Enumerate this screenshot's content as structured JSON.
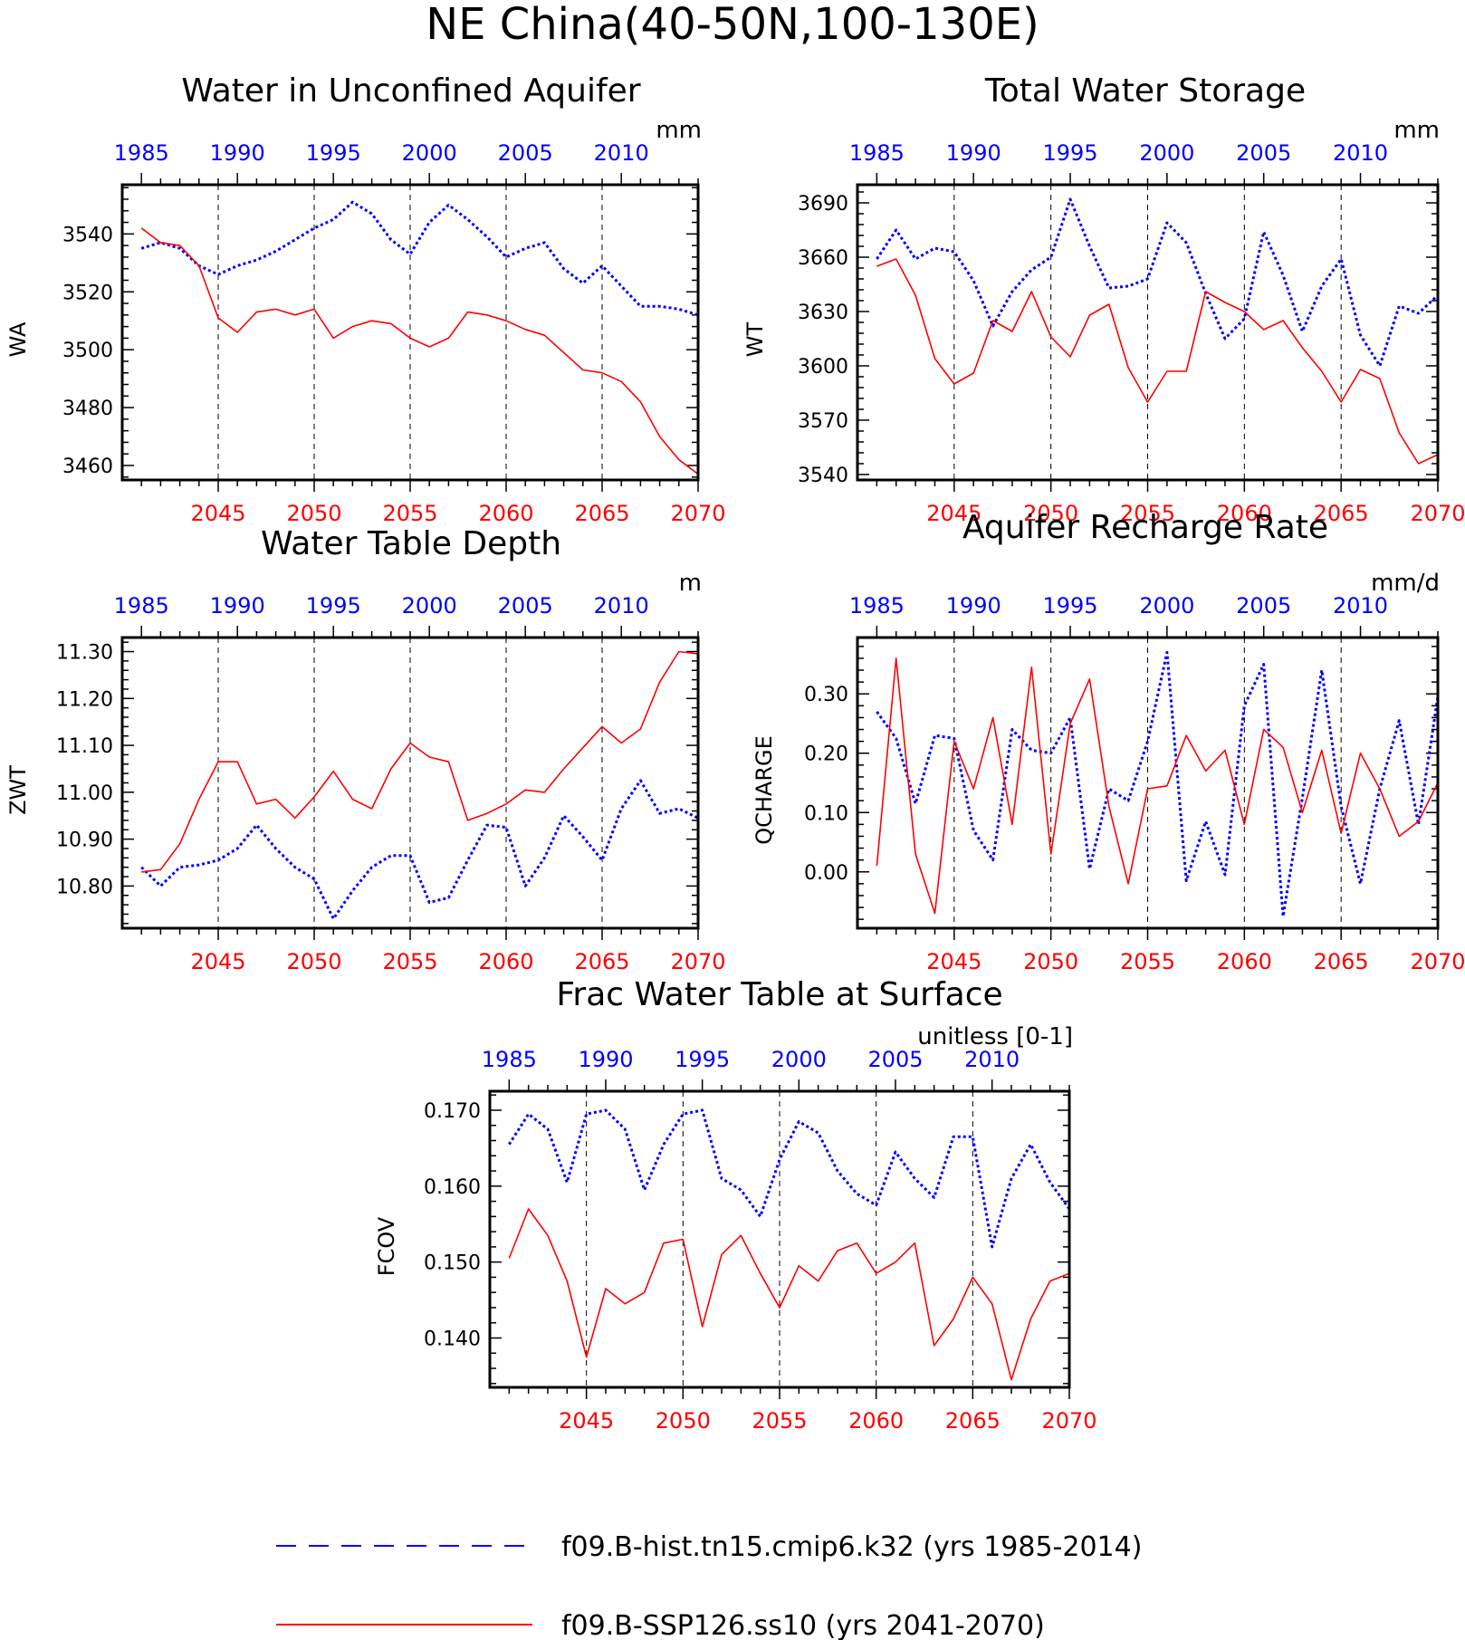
{
  "figure_title": "NE China(40-50N,100-130E)",
  "colors": {
    "hist": "#0000ff",
    "ssp": "#ff0000",
    "axis": "#000000",
    "grid": "#000000"
  },
  "legend": [
    {
      "label": "f09.B-hist.tn15.cmip6.k32 (yrs 1985-2014)",
      "color": "#0000ff",
      "style": "dashed"
    },
    {
      "label": "f09.B-SSP126.ss10 (yrs 2041-2070)",
      "color": "#ff0000",
      "style": "solid"
    }
  ],
  "chart_data": [
    {
      "type": "line",
      "title": "Water in Unconfined Aquifer",
      "ylabel": "WA",
      "units": "mm",
      "ylim": [
        3455,
        3557
      ],
      "yticks": [
        3460,
        3480,
        3500,
        3520,
        3540
      ],
      "ytick_labels": [
        "3460",
        "3480",
        "3500",
        "3520",
        "3540"
      ],
      "top_xticks": [
        1985,
        1990,
        1995,
        2000,
        2005,
        2010
      ],
      "bottom_xticks": [
        2045,
        2050,
        2055,
        2060,
        2065,
        2070
      ],
      "x_hist": [
        1985,
        1986,
        1987,
        1988,
        1989,
        1990,
        1991,
        1992,
        1993,
        1994,
        1995,
        1996,
        1997,
        1998,
        1999,
        2000,
        2001,
        2002,
        2003,
        2004,
        2005,
        2006,
        2007,
        2008,
        2009,
        2010,
        2011,
        2012,
        2013,
        2014
      ],
      "x_ssp": [
        2041,
        2042,
        2043,
        2044,
        2045,
        2046,
        2047,
        2048,
        2049,
        2050,
        2051,
        2052,
        2053,
        2054,
        2055,
        2056,
        2057,
        2058,
        2059,
        2060,
        2061,
        2062,
        2063,
        2064,
        2065,
        2066,
        2067,
        2068,
        2069,
        2070
      ],
      "series": [
        {
          "name": "f09.B-hist.tn15.cmip6.k32 (yrs 1985-2014)",
          "axis": "top",
          "values": [
            3535,
            3537,
            3535,
            3529,
            3526,
            3529,
            3531,
            3534,
            3538,
            3542,
            3545,
            3551,
            3547,
            3538,
            3533,
            3544,
            3550,
            3545,
            3539,
            3532,
            3535,
            3537,
            3528,
            3523,
            3529,
            3522,
            3515,
            3515,
            3514,
            3512
          ]
        },
        {
          "name": "f09.B-SSP126.ss10 (yrs 2041-2070)",
          "axis": "bottom",
          "values": [
            3542,
            3537,
            3536,
            3529,
            3511,
            3506,
            3513,
            3514,
            3512,
            3514,
            3504,
            3508,
            3510,
            3509,
            3504,
            3501,
            3504,
            3513,
            3512,
            3510,
            3507,
            3505,
            3499,
            3493,
            3492,
            3489,
            3482,
            3470,
            3462,
            3457
          ]
        }
      ]
    },
    {
      "type": "line",
      "title": "Total Water Storage",
      "ylabel": "WT",
      "units": "mm",
      "ylim": [
        3537,
        3700
      ],
      "yticks": [
        3540,
        3570,
        3600,
        3630,
        3660,
        3690
      ],
      "ytick_labels": [
        "3540",
        "3570",
        "3600",
        "3630",
        "3660",
        "3690"
      ],
      "top_xticks": [
        1985,
        1990,
        1995,
        2000,
        2005,
        2010
      ],
      "bottom_xticks": [
        2045,
        2050,
        2055,
        2060,
        2065,
        2070
      ],
      "x_hist": [
        1985,
        1986,
        1987,
        1988,
        1989,
        1990,
        1991,
        1992,
        1993,
        1994,
        1995,
        1996,
        1997,
        1998,
        1999,
        2000,
        2001,
        2002,
        2003,
        2004,
        2005,
        2006,
        2007,
        2008,
        2009,
        2010,
        2011,
        2012,
        2013,
        2014
      ],
      "x_ssp": [
        2041,
        2042,
        2043,
        2044,
        2045,
        2046,
        2047,
        2048,
        2049,
        2050,
        2051,
        2052,
        2053,
        2054,
        2055,
        2056,
        2057,
        2058,
        2059,
        2060,
        2061,
        2062,
        2063,
        2064,
        2065,
        2066,
        2067,
        2068,
        2069,
        2070
      ],
      "series": [
        {
          "name": "f09.B-hist.tn15.cmip6.k32 (yrs 1985-2014)",
          "axis": "top",
          "values": [
            3659,
            3675,
            3659,
            3665,
            3663,
            3647,
            3622,
            3641,
            3653,
            3660,
            3692,
            3666,
            3643,
            3644,
            3648,
            3679,
            3668,
            3640,
            3615,
            3626,
            3674,
            3650,
            3619,
            3644,
            3659,
            3617,
            3600,
            3633,
            3629,
            3639
          ]
        },
        {
          "name": "f09.B-SSP126.ss10 (yrs 2041-2070)",
          "axis": "bottom",
          "values": [
            3655,
            3659,
            3639,
            3604,
            3590,
            3596,
            3625,
            3619,
            3641,
            3616,
            3605,
            3628,
            3634,
            3599,
            3580,
            3597,
            3597,
            3641,
            3635,
            3630,
            3620,
            3625,
            3610,
            3597,
            3580,
            3598,
            3593,
            3563,
            3546,
            3551
          ]
        }
      ]
    },
    {
      "type": "line",
      "title": "Water Table Depth",
      "ylabel": "ZWT",
      "units": "m",
      "ylim": [
        10.71,
        11.33
      ],
      "yticks": [
        10.8,
        10.9,
        11.0,
        11.1,
        11.2,
        11.3
      ],
      "ytick_labels": [
        "10.80",
        "10.90",
        "11.00",
        "11.10",
        "11.20",
        "11.30"
      ],
      "top_xticks": [
        1985,
        1990,
        1995,
        2000,
        2005,
        2010
      ],
      "bottom_xticks": [
        2045,
        2050,
        2055,
        2060,
        2065,
        2070
      ],
      "x_hist": [
        1985,
        1986,
        1987,
        1988,
        1989,
        1990,
        1991,
        1992,
        1993,
        1994,
        1995,
        1996,
        1997,
        1998,
        1999,
        2000,
        2001,
        2002,
        2003,
        2004,
        2005,
        2006,
        2007,
        2008,
        2009,
        2010,
        2011,
        2012,
        2013,
        2014
      ],
      "x_ssp": [
        2041,
        2042,
        2043,
        2044,
        2045,
        2046,
        2047,
        2048,
        2049,
        2050,
        2051,
        2052,
        2053,
        2054,
        2055,
        2056,
        2057,
        2058,
        2059,
        2060,
        2061,
        2062,
        2063,
        2064,
        2065,
        2066,
        2067,
        2068,
        2069,
        2070
      ],
      "series": [
        {
          "name": "f09.B-hist.tn15.cmip6.k32 (yrs 1985-2014)",
          "axis": "top",
          "values": [
            10.84,
            10.8,
            10.84,
            10.845,
            10.855,
            10.88,
            10.93,
            10.88,
            10.84,
            10.815,
            10.73,
            10.79,
            10.84,
            10.865,
            10.865,
            10.765,
            10.775,
            10.855,
            10.93,
            10.925,
            10.8,
            10.86,
            10.95,
            10.905,
            10.855,
            10.965,
            11.025,
            10.955,
            10.965,
            10.945
          ]
        },
        {
          "name": "f09.B-SSP126.ss10 (yrs 2041-2070)",
          "axis": "bottom",
          "values": [
            10.83,
            10.835,
            10.89,
            10.985,
            11.065,
            11.065,
            10.975,
            10.985,
            10.945,
            10.99,
            11.045,
            10.985,
            10.965,
            11.05,
            11.105,
            11.075,
            11.065,
            10.94,
            10.955,
            10.975,
            11.005,
            11.0,
            11.05,
            11.095,
            11.14,
            11.105,
            11.135,
            11.235,
            11.3,
            11.295
          ]
        }
      ]
    },
    {
      "type": "line",
      "title": "Aquifer Recharge Rate",
      "ylabel": "QCHARGE",
      "units": "mm/d",
      "ylim": [
        -0.095,
        0.395
      ],
      "yticks": [
        0.0,
        0.1,
        0.2,
        0.3
      ],
      "ytick_labels": [
        "0.00",
        "0.10",
        "0.20",
        "0.30"
      ],
      "top_xticks": [
        1985,
        1990,
        1995,
        2000,
        2005,
        2010
      ],
      "bottom_xticks": [
        2045,
        2050,
        2055,
        2060,
        2065,
        2070
      ],
      "x_hist": [
        1985,
        1986,
        1987,
        1988,
        1989,
        1990,
        1991,
        1992,
        1993,
        1994,
        1995,
        1996,
        1997,
        1998,
        1999,
        2000,
        2001,
        2002,
        2003,
        2004,
        2005,
        2006,
        2007,
        2008,
        2009,
        2010,
        2011,
        2012,
        2013,
        2014
      ],
      "x_ssp": [
        2041,
        2042,
        2043,
        2044,
        2045,
        2046,
        2047,
        2048,
        2049,
        2050,
        2051,
        2052,
        2053,
        2054,
        2055,
        2056,
        2057,
        2058,
        2059,
        2060,
        2061,
        2062,
        2063,
        2064,
        2065,
        2066,
        2067,
        2068,
        2069,
        2070
      ],
      "series": [
        {
          "name": "f09.B-hist.tn15.cmip6.k32 (yrs 1985-2014)",
          "axis": "top",
          "values": [
            0.27,
            0.225,
            0.115,
            0.23,
            0.225,
            0.07,
            0.02,
            0.24,
            0.205,
            0.2,
            0.26,
            0.005,
            0.14,
            0.12,
            0.22,
            0.37,
            -0.015,
            0.085,
            -0.005,
            0.28,
            0.35,
            -0.075,
            0.125,
            0.34,
            0.11,
            -0.02,
            0.14,
            0.255,
            0.08,
            0.295
          ]
        },
        {
          "name": "f09.B-SSP126.ss10 (yrs 2041-2070)",
          "axis": "bottom",
          "values": [
            0.01,
            0.36,
            0.03,
            -0.07,
            0.22,
            0.14,
            0.26,
            0.08,
            0.345,
            0.03,
            0.25,
            0.325,
            0.11,
            -0.02,
            0.14,
            0.145,
            0.23,
            0.17,
            0.205,
            0.08,
            0.24,
            0.21,
            0.1,
            0.205,
            0.065,
            0.2,
            0.14,
            0.06,
            0.085,
            0.15
          ]
        }
      ]
    },
    {
      "type": "line",
      "title": "Frac Water Table at Surface",
      "ylabel": "FCOV",
      "units": "unitless [0-1]",
      "ylim": [
        0.1335,
        0.1725
      ],
      "yticks": [
        0.14,
        0.15,
        0.16,
        0.17
      ],
      "ytick_labels": [
        "0.140",
        "0.150",
        "0.160",
        "0.170"
      ],
      "top_xticks": [
        1985,
        1990,
        1995,
        2000,
        2005,
        2010
      ],
      "bottom_xticks": [
        2045,
        2050,
        2055,
        2060,
        2065,
        2070
      ],
      "x_hist": [
        1985,
        1986,
        1987,
        1988,
        1989,
        1990,
        1991,
        1992,
        1993,
        1994,
        1995,
        1996,
        1997,
        1998,
        1999,
        2000,
        2001,
        2002,
        2003,
        2004,
        2005,
        2006,
        2007,
        2008,
        2009,
        2010,
        2011,
        2012,
        2013,
        2014
      ],
      "x_ssp": [
        2041,
        2042,
        2043,
        2044,
        2045,
        2046,
        2047,
        2048,
        2049,
        2050,
        2051,
        2052,
        2053,
        2054,
        2055,
        2056,
        2057,
        2058,
        2059,
        2060,
        2061,
        2062,
        2063,
        2064,
        2065,
        2066,
        2067,
        2068,
        2069,
        2070
      ],
      "series": [
        {
          "name": "f09.B-hist.tn15.cmip6.k32 (yrs 1985-2014)",
          "axis": "top",
          "values": [
            0.1655,
            0.1695,
            0.1675,
            0.1605,
            0.1695,
            0.17,
            0.1675,
            0.1595,
            0.1655,
            0.1695,
            0.17,
            0.161,
            0.1595,
            0.156,
            0.1635,
            0.1685,
            0.167,
            0.162,
            0.159,
            0.1575,
            0.1645,
            0.161,
            0.1585,
            0.1665,
            0.1665,
            0.152,
            0.161,
            0.1655,
            0.1605,
            0.157
          ]
        },
        {
          "name": "f09.B-SSP126.ss10 (yrs 2041-2070)",
          "axis": "bottom",
          "values": [
            0.1505,
            0.157,
            0.1535,
            0.1475,
            0.1375,
            0.1465,
            0.1445,
            0.146,
            0.1525,
            0.153,
            0.1415,
            0.151,
            0.1535,
            0.1485,
            0.144,
            0.1495,
            0.1475,
            0.1515,
            0.1525,
            0.1485,
            0.15,
            0.1525,
            0.139,
            0.1425,
            0.148,
            0.1445,
            0.1345,
            0.1425,
            0.1475,
            0.1485
          ]
        }
      ]
    }
  ]
}
